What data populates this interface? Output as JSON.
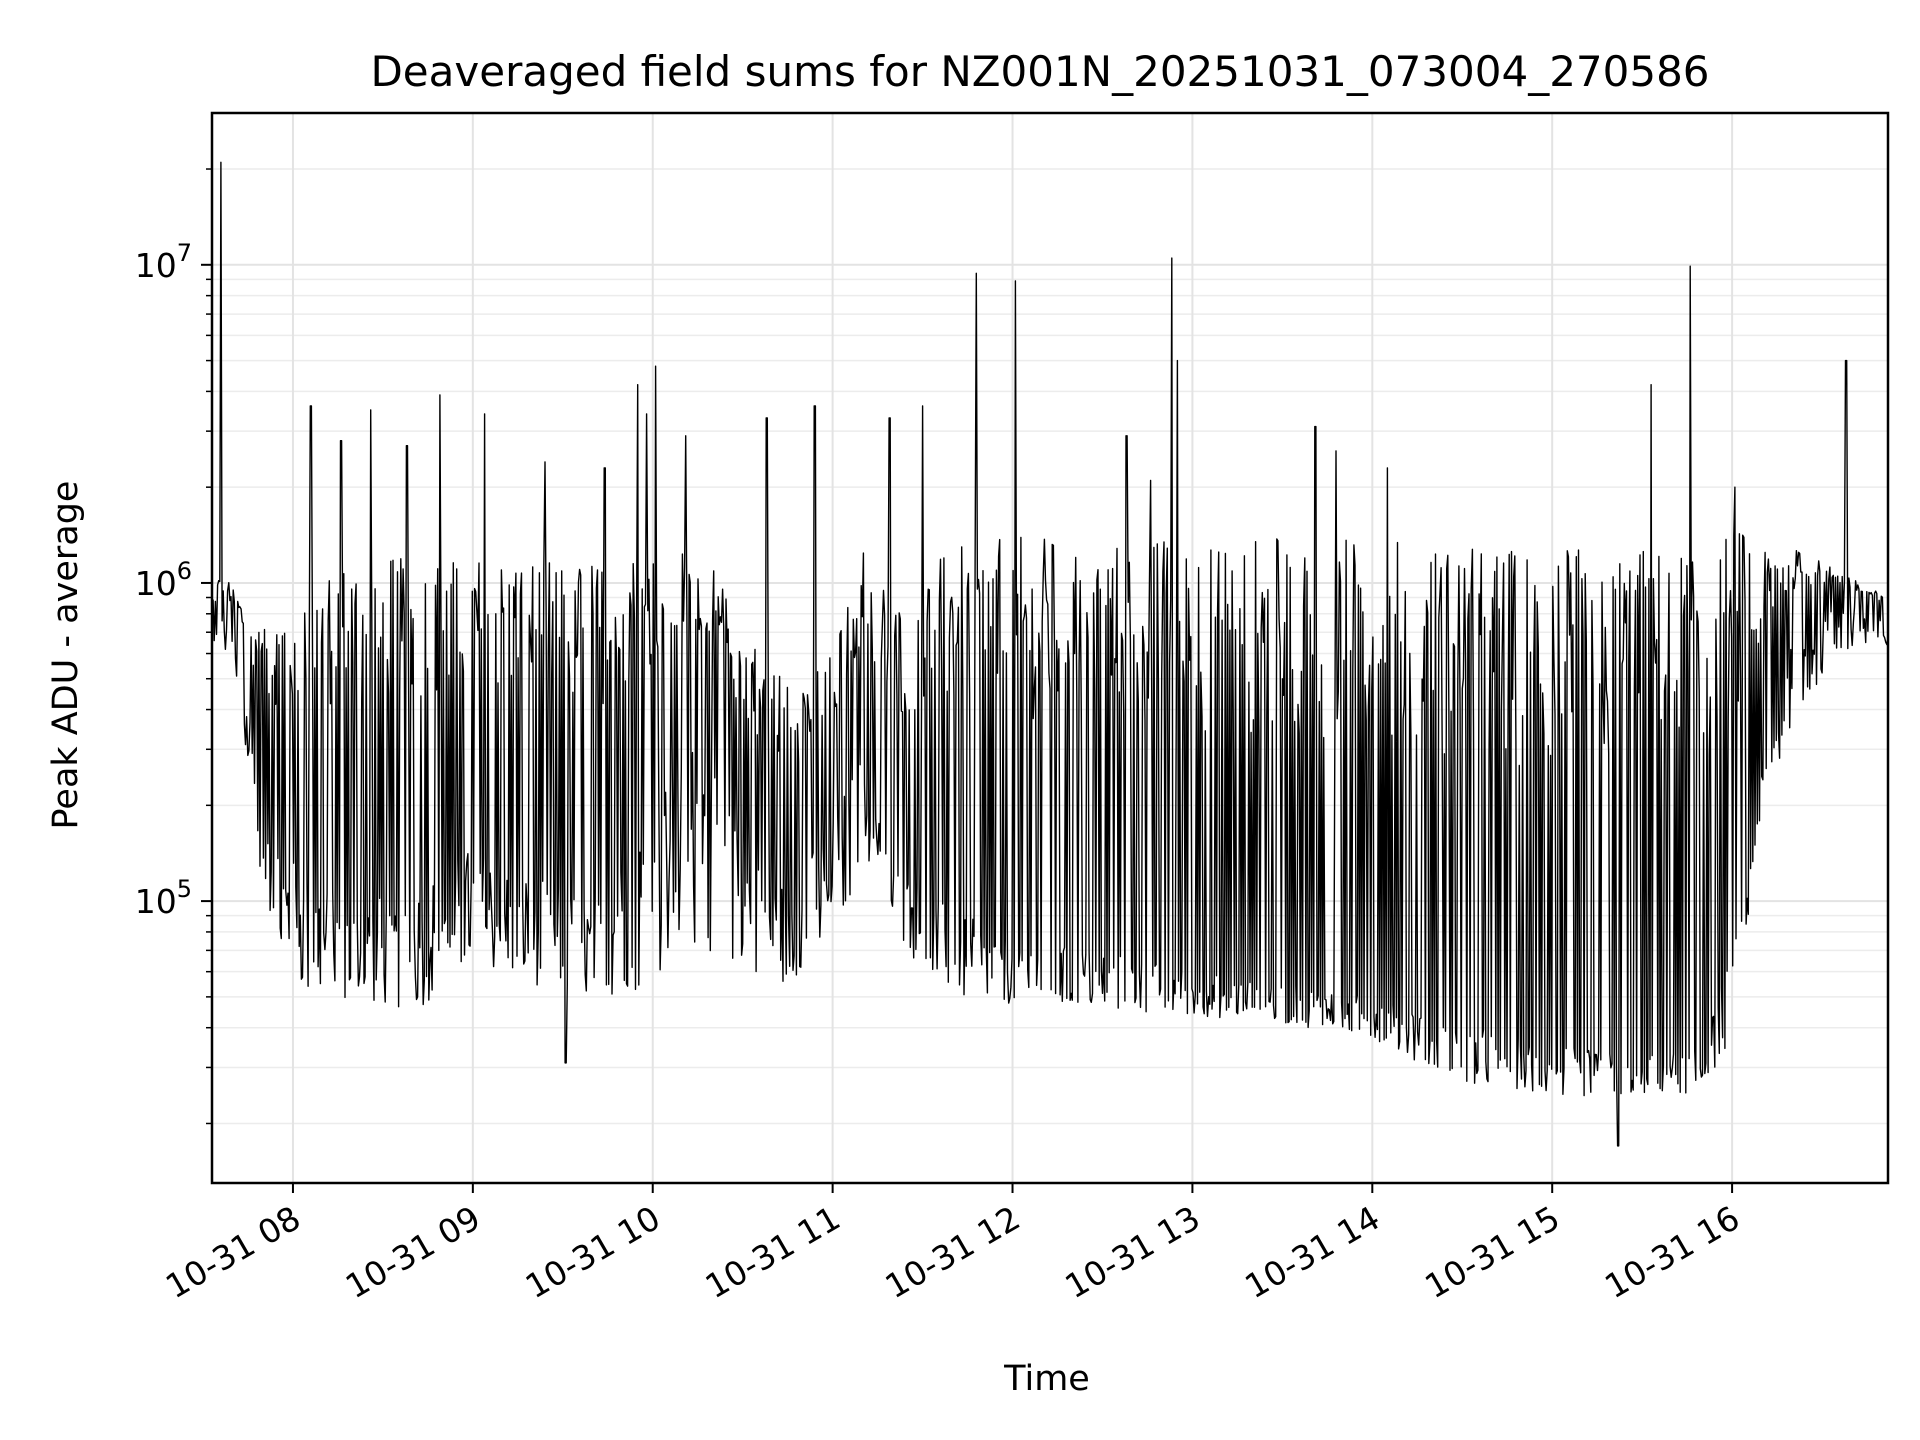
{
  "chart_data": {
    "type": "line",
    "title": "Deaveraged field sums for NZ001N_20251031_073004_270586",
    "xlabel": "Time",
    "ylabel": "Peak ADU - average",
    "y_scale": "log",
    "ylim": [
      13000,
      30000000
    ],
    "xlim": [
      "2025-10-31 07:33",
      "2025-10-31 16:52"
    ],
    "x_ticks": [
      {
        "value": "2025-10-31 08:00",
        "label": "10-31 08"
      },
      {
        "value": "2025-10-31 09:00",
        "label": "10-31 09"
      },
      {
        "value": "2025-10-31 10:00",
        "label": "10-31 10"
      },
      {
        "value": "2025-10-31 11:00",
        "label": "10-31 11"
      },
      {
        "value": "2025-10-31 12:00",
        "label": "10-31 12"
      },
      {
        "value": "2025-10-31 13:00",
        "label": "10-31 13"
      },
      {
        "value": "2025-10-31 14:00",
        "label": "10-31 14"
      },
      {
        "value": "2025-10-31 15:00",
        "label": "10-31 15"
      },
      {
        "value": "2025-10-31 16:00",
        "label": "10-31 16"
      }
    ],
    "y_ticks": [
      {
        "value": 100000,
        "base": "10",
        "exp": "5"
      },
      {
        "value": 1000000,
        "base": "10",
        "exp": "6"
      },
      {
        "value": 10000000,
        "base": "10",
        "exp": "7"
      }
    ],
    "grid": true,
    "line_color": "#000000",
    "series": [
      {
        "x": [
          "2025-10-31 07:33",
          "2025-10-31 07:36",
          "2025-10-31 07:40",
          "2025-10-31 07:45",
          "2025-10-31 07:50",
          "2025-10-31 07:56",
          "2025-10-31 08:05",
          "2025-10-31 08:20",
          "2025-10-31 08:40",
          "2025-10-31 09:00",
          "2025-10-31 09:20",
          "2025-10-31 09:40",
          "2025-10-31 10:00",
          "2025-10-31 10:15",
          "2025-10-31 10:30",
          "2025-10-31 10:45",
          "2025-10-31 11:00",
          "2025-10-31 11:10",
          "2025-10-31 11:20",
          "2025-10-31 11:40",
          "2025-10-31 12:00",
          "2025-10-31 12:30",
          "2025-10-31 13:00",
          "2025-10-31 13:30",
          "2025-10-31 14:00",
          "2025-10-31 14:30",
          "2025-10-31 15:00",
          "2025-10-31 15:30",
          "2025-10-31 15:50",
          "2025-10-31 16:00",
          "2025-10-31 16:10",
          "2025-10-31 16:20",
          "2025-10-31 16:35",
          "2025-10-31 16:52"
        ],
        "y_lower": [
          700000,
          800000,
          650000,
          450000,
          250000,
          150000,
          120000,
          100000,
          110000,
          150000,
          120000,
          100000,
          200000,
          350000,
          150000,
          110000,
          180000,
          300000,
          130000,
          95000,
          75000,
          70000,
          60000,
          55000,
          50000,
          42000,
          35000,
          33000,
          34000,
          70000,
          250000,
          650000,
          900000,
          750000
        ],
        "y_upper": [
          900000,
          1100000,
          1000000,
          800000,
          700000,
          900000,
          1100000,
          1200000,
          1200000,
          1200000,
          1200000,
          1200000,
          1300000,
          1300000,
          800000,
          500000,
          600000,
          1300000,
          900000,
          1300000,
          1400000,
          1400000,
          1400000,
          1400000,
          1400000,
          1300000,
          1300000,
          1300000,
          1300000,
          1500000,
          1400000,
          1300000,
          1100000,
          900000
        ],
        "y_min": [
          500000,
          600000,
          500000,
          220000,
          100000,
          55000,
          45000,
          45000,
          40000,
          55000,
          50000,
          45000,
          45000,
          60000,
          55000,
          50000,
          65000,
          120000,
          70000,
          45000,
          45000,
          43000,
          42000,
          40000,
          36000,
          25000,
          23000,
          24000,
          24000,
          35000,
          150000,
          350000,
          550000,
          600000
        ],
        "spikes": [
          {
            "x": "2025-10-31 07:36",
            "y": 21000000
          },
          {
            "x": "2025-10-31 08:06",
            "y": 3600000
          },
          {
            "x": "2025-10-31 08:16",
            "y": 2800000
          },
          {
            "x": "2025-10-31 08:26",
            "y": 3500000
          },
          {
            "x": "2025-10-31 08:38",
            "y": 2700000
          },
          {
            "x": "2025-10-31 08:49",
            "y": 3900000
          },
          {
            "x": "2025-10-31 09:04",
            "y": 3400000
          },
          {
            "x": "2025-10-31 09:24",
            "y": 2400000
          },
          {
            "x": "2025-10-31 09:44",
            "y": 2300000
          },
          {
            "x": "2025-10-31 09:55",
            "y": 4200000
          },
          {
            "x": "2025-10-31 09:58",
            "y": 3400000
          },
          {
            "x": "2025-10-31 10:01",
            "y": 4800000
          },
          {
            "x": "2025-10-31 10:11",
            "y": 2900000
          },
          {
            "x": "2025-10-31 10:38",
            "y": 3300000
          },
          {
            "x": "2025-10-31 10:54",
            "y": 3600000
          },
          {
            "x": "2025-10-31 11:19",
            "y": 3300000
          },
          {
            "x": "2025-10-31 11:30",
            "y": 3600000
          },
          {
            "x": "2025-10-31 11:48",
            "y": 9400000
          },
          {
            "x": "2025-10-31 12:01",
            "y": 8900000
          },
          {
            "x": "2025-10-31 12:38",
            "y": 2900000
          },
          {
            "x": "2025-10-31 12:46",
            "y": 2100000
          },
          {
            "x": "2025-10-31 12:53",
            "y": 10500000
          },
          {
            "x": "2025-10-31 12:55",
            "y": 5000000
          },
          {
            "x": "2025-10-31 13:41",
            "y": 3100000
          },
          {
            "x": "2025-10-31 13:48",
            "y": 2600000
          },
          {
            "x": "2025-10-31 14:05",
            "y": 2300000
          },
          {
            "x": "2025-10-31 15:33",
            "y": 4200000
          },
          {
            "x": "2025-10-31 15:46",
            "y": 9900000
          },
          {
            "x": "2025-10-31 16:01",
            "y": 2000000
          },
          {
            "x": "2025-10-31 16:38",
            "y": 5000000
          }
        ],
        "dips": [
          {
            "x": "2025-10-31 09:31",
            "y": 31000
          },
          {
            "x": "2025-10-31 15:22",
            "y": 17000
          }
        ]
      }
    ]
  }
}
